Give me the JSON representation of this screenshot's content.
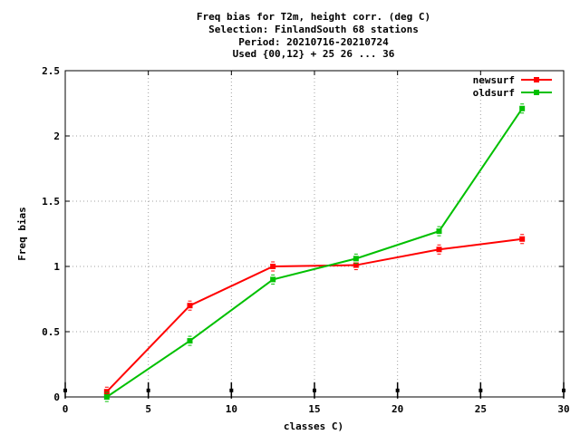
{
  "chart_data": {
    "type": "line",
    "title_lines": [
      "Freq bias  for T2m, height corr. (deg C)",
      "Selection: FinlandSouth     68 stations",
      "Period: 20210716-20210724",
      "Used {00,12} + 25 26 ... 36"
    ],
    "xlabel": "classes C)",
    "ylabel": "Freq bias",
    "xlim": [
      0,
      30
    ],
    "ylim": [
      0,
      2.5
    ],
    "xticks": [
      0,
      5,
      10,
      15,
      20,
      25,
      30
    ],
    "xtick_labels": [
      "0",
      "5",
      "10",
      "15",
      "20",
      "25",
      "30"
    ],
    "yticks": [
      0,
      0.5,
      1,
      1.5,
      2,
      2.5
    ],
    "ytick_labels": [
      "0",
      "0.5",
      "1",
      "1.5",
      "2",
      "2.5"
    ],
    "grid": true,
    "legend_position": "top-right",
    "class_markers_x": [
      0,
      5,
      10,
      15,
      20,
      25,
      30
    ],
    "class_markers_y": 0.05,
    "series": [
      {
        "name": "newsurf",
        "color": "#ff0000",
        "x": [
          2.5,
          7.5,
          12.5,
          17.5,
          22.5,
          27.5
        ],
        "y": [
          0.04,
          0.7,
          1.0,
          1.01,
          1.13,
          1.21
        ]
      },
      {
        "name": "oldsurf",
        "color": "#00c000",
        "x": [
          2.5,
          7.5,
          12.5,
          17.5,
          22.5,
          27.5
        ],
        "y": [
          0.0,
          0.43,
          0.9,
          1.06,
          1.27,
          2.21
        ]
      }
    ]
  }
}
